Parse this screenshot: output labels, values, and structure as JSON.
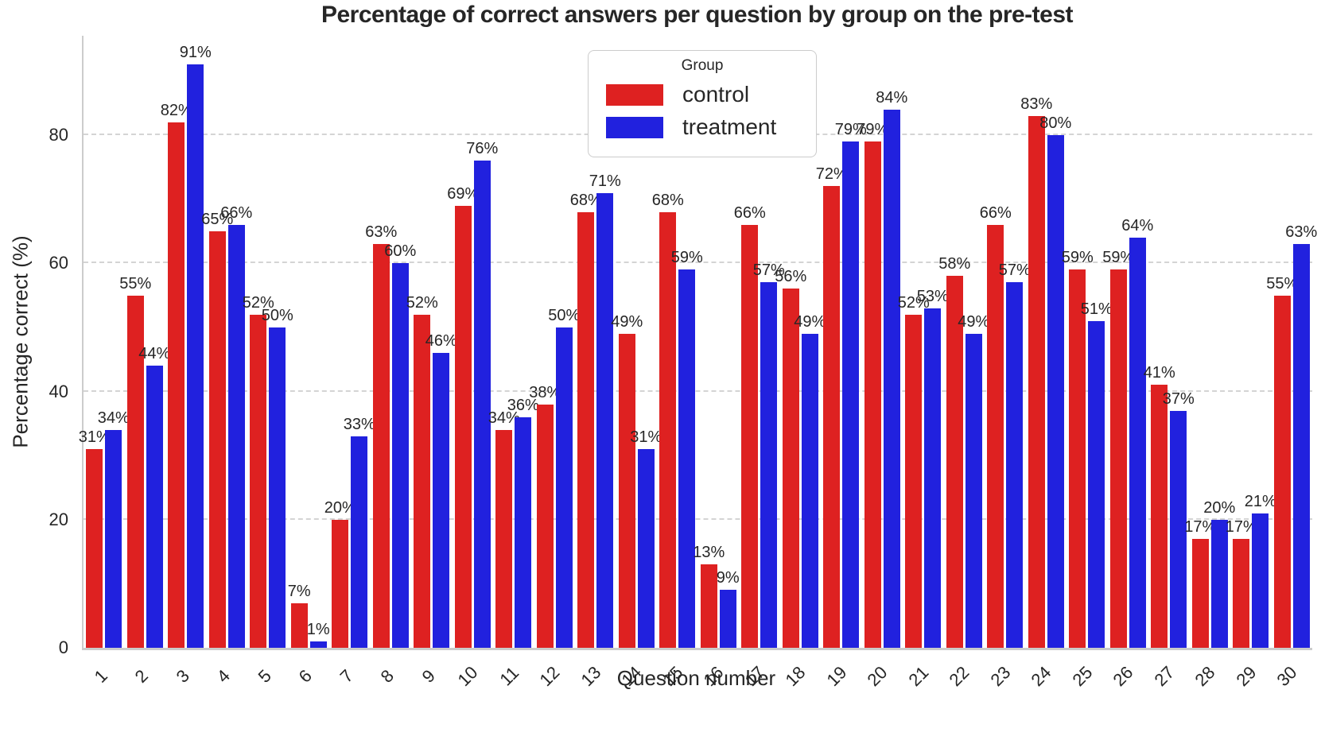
{
  "chart_data": {
    "type": "bar",
    "title": "Percentage of correct answers per question by group on the pre-test",
    "xlabel": "Question number",
    "ylabel": "Percentage correct (%)",
    "legend_title": "Group",
    "legend_position": "upper center-left, inside plot",
    "grid": "horizontal dashed gridlines at yticks",
    "categories": [
      "1",
      "2",
      "3",
      "4",
      "5",
      "6",
      "7",
      "8",
      "9",
      "10",
      "11",
      "12",
      "13",
      "14",
      "15",
      "16",
      "17",
      "18",
      "19",
      "20",
      "21",
      "22",
      "23",
      "24",
      "25",
      "26",
      "27",
      "28",
      "29",
      "30"
    ],
    "series": [
      {
        "name": "control",
        "color": "#de2121",
        "values": [
          31,
          55,
          82,
          65,
          52,
          7,
          20,
          63,
          52,
          69,
          34,
          38,
          68,
          49,
          68,
          13,
          66,
          56,
          72,
          79,
          52,
          58,
          66,
          83,
          59,
          59,
          41,
          17,
          17,
          55
        ]
      },
      {
        "name": "treatment",
        "color": "#2121de",
        "values": [
          34,
          44,
          91,
          66,
          50,
          1,
          33,
          60,
          46,
          76,
          36,
          50,
          71,
          31,
          59,
          9,
          57,
          49,
          79,
          84,
          53,
          49,
          57,
          80,
          51,
          64,
          37,
          20,
          21,
          63
        ]
      }
    ],
    "value_label_suffix": "%",
    "yticks": [
      0,
      20,
      40,
      60,
      80
    ],
    "ylim": [
      0,
      95.5
    ],
    "colors": {
      "text": "#262626",
      "gridline": "#d4d4d4",
      "spine": "#cccccc",
      "background": "#ffffff"
    }
  }
}
